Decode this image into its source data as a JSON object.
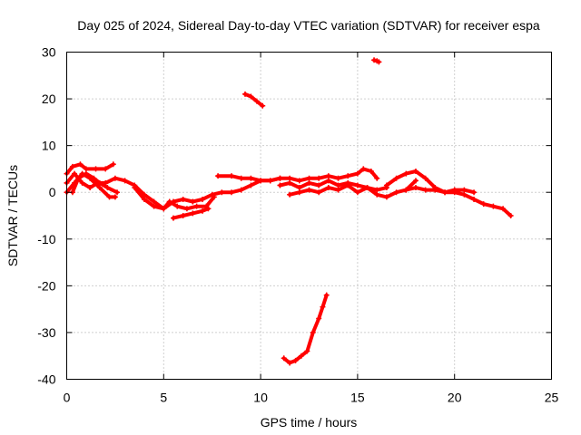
{
  "chart_data": {
    "type": "scatter",
    "title": "Day 025 of 2024, Sidereal Day-to-day VTEC variation (SDTVAR) for receiver espa",
    "xlabel": "GPS time / hours",
    "ylabel": "SDTVAR / TECUs",
    "xlim": [
      0,
      25
    ],
    "ylim": [
      -40,
      30
    ],
    "x_ticks": [
      0,
      5,
      10,
      15,
      20,
      25
    ],
    "y_ticks": [
      -40,
      -30,
      -20,
      -10,
      0,
      10,
      20,
      30
    ],
    "grid": true,
    "color": "#ff0000",
    "series": [
      {
        "name": "track-1",
        "x": [
          0.0,
          0.3,
          0.7,
          1.0,
          1.5,
          2.0,
          2.4
        ],
        "y": [
          4.0,
          5.5,
          6.0,
          5.0,
          5.0,
          5.0,
          6.0
        ]
      },
      {
        "name": "track-2",
        "x": [
          0.0,
          0.4,
          0.8,
          1.2,
          1.7,
          2.2,
          2.5
        ],
        "y": [
          0.0,
          2.0,
          4.0,
          3.0,
          1.0,
          -1.0,
          -1.0
        ]
      },
      {
        "name": "track-3",
        "x": [
          0.0,
          0.4,
          0.8,
          1.2,
          1.6,
          2.0,
          2.5,
          3.0,
          3.5,
          4.0,
          4.5,
          5.0,
          5.3,
          5.7,
          6.2,
          6.7,
          7.2,
          7.6
        ],
        "y": [
          2.0,
          4.0,
          2.0,
          1.0,
          2.0,
          2.0,
          3.0,
          2.5,
          1.5,
          -0.5,
          -2.0,
          -3.5,
          -2.0,
          -3.0,
          -3.5,
          -3.0,
          -3.0,
          -1.0
        ]
      },
      {
        "name": "track-4",
        "x": [
          0.3,
          0.6,
          1.0,
          1.4,
          1.7,
          2.1,
          2.6
        ],
        "y": [
          0.0,
          3.0,
          4.0,
          3.0,
          2.0,
          1.0,
          0.0
        ]
      },
      {
        "name": "track-5",
        "x": [
          3.5,
          4.0,
          4.5,
          5.0,
          5.5,
          6.0,
          6.5,
          7.0,
          7.5,
          8.0,
          8.5,
          9.0,
          9.5,
          10.0,
          10.5,
          11.0
        ],
        "y": [
          1.0,
          -1.5,
          -3.0,
          -3.5,
          -2.0,
          -1.5,
          -2.0,
          -1.5,
          -0.5,
          0.0,
          0.0,
          0.5,
          1.5,
          2.5,
          2.5,
          3.0
        ]
      },
      {
        "name": "track-6",
        "x": [
          5.5,
          6.0,
          6.5,
          7.0,
          7.3
        ],
        "y": [
          -5.5,
          -5.0,
          -4.5,
          -4.0,
          -3.5
        ]
      },
      {
        "name": "track-7",
        "x": [
          7.8,
          8.5,
          9.0,
          9.5,
          10.0,
          10.5,
          11.0,
          11.5,
          12.0,
          12.5,
          13.0,
          13.5,
          14.0,
          14.5,
          15.0,
          15.3,
          15.7,
          16.0
        ],
        "y": [
          3.5,
          3.5,
          3.0,
          3.0,
          2.5,
          2.5,
          3.0,
          3.0,
          2.5,
          3.0,
          3.0,
          3.5,
          3.0,
          3.5,
          4.0,
          5.0,
          4.5,
          3.0
        ]
      },
      {
        "name": "track-8",
        "x": [
          11.0,
          11.5,
          12.0,
          12.5,
          13.0,
          13.5,
          14.0,
          14.5,
          15.0,
          15.5,
          16.0,
          16.5
        ],
        "y": [
          1.5,
          2.0,
          1.0,
          2.0,
          1.5,
          2.5,
          1.5,
          2.0,
          1.5,
          1.0,
          0.5,
          1.0
        ]
      },
      {
        "name": "track-9",
        "x": [
          11.5,
          12.0,
          12.5,
          13.0,
          13.5,
          14.0,
          14.5,
          15.0,
          15.5,
          16.0,
          16.5,
          17.0,
          17.5,
          18.0
        ],
        "y": [
          -0.5,
          0.0,
          0.5,
          0.0,
          1.0,
          0.5,
          1.5,
          0.0,
          1.0,
          -0.5,
          -1.0,
          0.0,
          0.5,
          2.5
        ]
      },
      {
        "name": "track-10",
        "x": [
          16.5,
          17.0,
          17.5,
          18.0,
          18.5,
          19.0,
          19.5,
          20.0,
          20.5,
          21.0,
          21.5,
          22.0,
          22.5,
          22.9
        ],
        "y": [
          1.5,
          3.0,
          4.0,
          4.5,
          3.0,
          1.0,
          0.0,
          0.0,
          -0.5,
          -1.5,
          -2.5,
          -3.0,
          -3.5,
          -5.0
        ]
      },
      {
        "name": "track-11",
        "x": [
          17.5,
          18.0,
          18.5,
          19.0,
          19.5,
          20.0,
          20.5,
          21.0
        ],
        "y": [
          0.5,
          1.0,
          0.5,
          0.5,
          0.0,
          0.5,
          0.5,
          0.0
        ]
      },
      {
        "name": "track-12",
        "x": [
          9.2,
          9.5,
          9.8,
          10.1
        ],
        "y": [
          21.0,
          20.5,
          19.5,
          18.5
        ]
      },
      {
        "name": "track-13",
        "x": [
          11.2,
          11.5,
          11.8,
          12.1,
          12.4,
          12.7,
          13.0,
          13.2,
          13.4
        ],
        "y": [
          -35.5,
          -36.5,
          -36.0,
          -35.0,
          -34.0,
          -30.0,
          -27.0,
          -24.5,
          -22.0
        ]
      },
      {
        "name": "track-14",
        "x": [
          15.85,
          16.0,
          16.1
        ],
        "y": [
          28.3,
          28.1,
          27.9
        ]
      }
    ]
  }
}
